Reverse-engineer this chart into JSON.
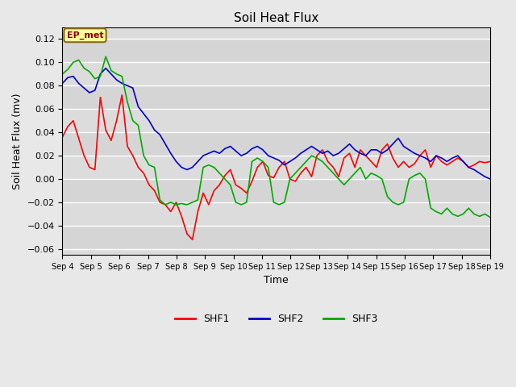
{
  "title": "Soil Heat Flux",
  "xlabel": "Time",
  "ylabel": "Soil Heat Flux (mv)",
  "ylim": [
    -0.065,
    0.13
  ],
  "yticks": [
    -0.06,
    -0.04,
    -0.02,
    0.0,
    0.02,
    0.04,
    0.06,
    0.08,
    0.1,
    0.12
  ],
  "xtick_labels": [
    "Sep 4",
    "Sep 5",
    "Sep 6",
    "Sep 7",
    "Sep 8",
    "Sep 9",
    "Sep 10",
    "Sep 11",
    "Sep 12",
    "Sep 13",
    "Sep 14",
    "Sep 15",
    "Sep 16",
    "Sep 17",
    "Sep 18",
    "Sep 19"
  ],
  "annotation": "EP_met",
  "annotation_color": "#8B0000",
  "annotation_bg": "#FFFF99",
  "annotation_edge": "#8B6914",
  "line_colors": {
    "SHF1": "#FF0000",
    "SHF2": "#0000CC",
    "SHF3": "#00AA00"
  },
  "line_width": 1.2,
  "background_color": "#E8E8E8",
  "plot_bg_color": "#DCDCDC",
  "grid_color": "#FFFFFF",
  "legend_labels": [
    "SHF1",
    "SHF2",
    "SHF3"
  ],
  "SHF1": [
    0.036,
    0.045,
    0.05,
    0.035,
    0.02,
    0.01,
    0.008,
    0.07,
    0.042,
    0.033,
    0.05,
    0.072,
    0.028,
    0.02,
    0.01,
    0.005,
    -0.005,
    -0.01,
    -0.02,
    -0.022,
    -0.028,
    -0.02,
    -0.032,
    -0.047,
    -0.052,
    -0.028,
    -0.012,
    -0.022,
    -0.01,
    -0.005,
    0.003,
    0.008,
    -0.005,
    -0.008,
    -0.012,
    -0.002,
    0.01,
    0.015,
    0.003,
    0.001,
    0.01,
    0.015,
    0.0,
    -0.002,
    0.005,
    0.01,
    0.002,
    0.02,
    0.025,
    0.015,
    0.01,
    0.002,
    0.018,
    0.022,
    0.01,
    0.025,
    0.02,
    0.015,
    0.01,
    0.025,
    0.03,
    0.018,
    0.01,
    0.015,
    0.01,
    0.013,
    0.02,
    0.025,
    0.01,
    0.02,
    0.015,
    0.012,
    0.015,
    0.018,
    0.015,
    0.01,
    0.012,
    0.015,
    0.014,
    0.015
  ],
  "SHF2": [
    0.082,
    0.087,
    0.088,
    0.082,
    0.078,
    0.074,
    0.076,
    0.09,
    0.095,
    0.09,
    0.085,
    0.082,
    0.08,
    0.078,
    0.062,
    0.056,
    0.05,
    0.042,
    0.038,
    0.03,
    0.022,
    0.015,
    0.01,
    0.008,
    0.01,
    0.015,
    0.02,
    0.022,
    0.024,
    0.022,
    0.026,
    0.028,
    0.024,
    0.02,
    0.022,
    0.026,
    0.028,
    0.025,
    0.02,
    0.018,
    0.016,
    0.012,
    0.015,
    0.018,
    0.022,
    0.025,
    0.028,
    0.025,
    0.022,
    0.024,
    0.02,
    0.022,
    0.026,
    0.03,
    0.025,
    0.022,
    0.02,
    0.025,
    0.025,
    0.022,
    0.025,
    0.03,
    0.035,
    0.028,
    0.025,
    0.022,
    0.02,
    0.018,
    0.015,
    0.02,
    0.018,
    0.015,
    0.018,
    0.02,
    0.015,
    0.01,
    0.008,
    0.005,
    0.002,
    0.0
  ],
  "SHF3": [
    0.09,
    0.094,
    0.1,
    0.102,
    0.095,
    0.092,
    0.086,
    0.088,
    0.105,
    0.093,
    0.09,
    0.088,
    0.066,
    0.05,
    0.046,
    0.02,
    0.012,
    0.01,
    -0.018,
    -0.022,
    -0.02,
    -0.022,
    -0.021,
    -0.022,
    -0.02,
    -0.018,
    0.01,
    0.012,
    0.01,
    0.005,
    0.0,
    -0.005,
    -0.02,
    -0.022,
    -0.02,
    0.015,
    0.018,
    0.015,
    0.01,
    -0.02,
    -0.022,
    -0.02,
    0.0,
    0.005,
    0.01,
    0.015,
    0.02,
    0.018,
    0.015,
    0.01,
    0.005,
    0.0,
    -0.005,
    0.0,
    0.005,
    0.01,
    0.0,
    0.005,
    0.003,
    0.0,
    -0.015,
    -0.02,
    -0.022,
    -0.02,
    0.0,
    0.003,
    0.005,
    0.0,
    -0.025,
    -0.028,
    -0.03,
    -0.025,
    -0.03,
    -0.032,
    -0.03,
    -0.025,
    -0.03,
    -0.032,
    -0.03,
    -0.033
  ]
}
